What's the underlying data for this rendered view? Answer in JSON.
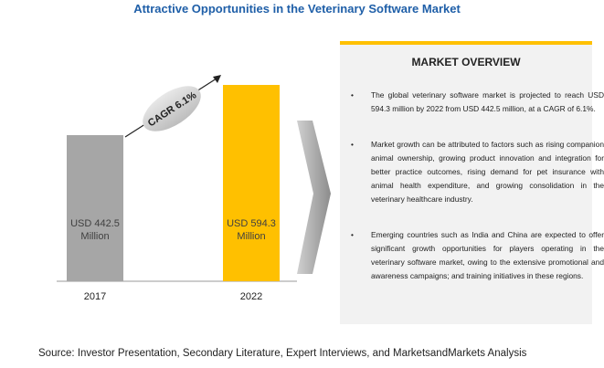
{
  "chart_data": {
    "type": "bar",
    "title": "Attractive Opportunities in the Veterinary Software Market",
    "categories": [
      "2017",
      "2022"
    ],
    "values": [
      442.5,
      594.3
    ],
    "value_labels": [
      "USD 442.5 Million",
      "USD 594.3 Million"
    ],
    "colors": [
      "#a6a6a6",
      "#ffc000"
    ],
    "annotation": "CAGR 6.1%"
  },
  "overview": {
    "title": "MARKET OVERVIEW",
    "bullets": [
      "The global veterinary software market is projected to reach USD 594.3 million by 2022 from USD 442.5 million, at a CAGR of 6.1%.",
      "Market growth can be attributed to factors such as rising companion animal ownership, growing product innovation and integration for better practice outcomes, rising demand for pet insurance with animal health expenditure, and growing consolidation in the veterinary healthcare industry.",
      "Emerging countries such as India and China are expected to offer significant growth opportunities for players operating in the veterinary software market, owing to the extensive promotional and awareness campaigns; and training initiatives in these regions."
    ]
  },
  "source": "Source: Investor Presentation, Secondary Literature, Expert Interviews, and MarketsandMarkets Analysis"
}
